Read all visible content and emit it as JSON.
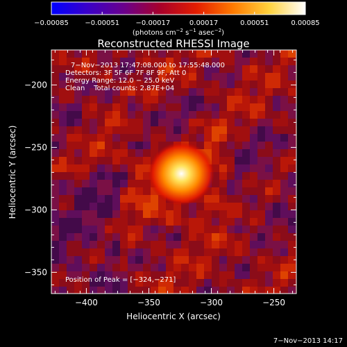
{
  "chart_data": {
    "type": "heatmap",
    "title": "Reconstructed RHESSI Image",
    "xlabel": "Heliocentric X (arcsec)",
    "ylabel": "Heliocentric Y (arcsec)",
    "xlim": [
      -428,
      -232
    ],
    "ylim": [
      -367,
      -172
    ],
    "xticks": [
      -400,
      -350,
      -300,
      -250
    ],
    "yticks": [
      -350,
      -300,
      -250,
      -200
    ],
    "xticklabels": [
      "−400",
      "−350",
      "−300",
      "−250"
    ],
    "yticklabels": [
      "−350",
      "−300",
      "−250",
      "−200"
    ],
    "colorbar": {
      "range": [
        -0.00085,
        0.00085
      ],
      "ticks": [
        -0.00085,
        -0.00051,
        -0.00017,
        0.00017,
        0.00051,
        0.00085
      ],
      "ticklabels": [
        "−0.00085",
        "−0.00051",
        "−0.00017",
        "0.00017",
        "0.00051",
        "0.00085"
      ],
      "unit_parts": {
        "prefix": "(photons cm",
        "sup1": "−2",
        "mid1": " s",
        "sup2": "−1",
        "mid2": " asec",
        "sup3": "−2",
        "suffix": ")"
      },
      "colors": [
        "#0000ff",
        "#3a00c8",
        "#6a008c",
        "#a8002a",
        "#e31d00",
        "#ff7a00",
        "#ffd23d",
        "#ffffff"
      ]
    },
    "peak": {
      "x": -324,
      "y": -271
    },
    "annotations": [
      "7−Nov−2013 17:47:08.000 to 17:55:48.000",
      "Detectors: 3F 5F 6F 7F 8F 9F, Att 0",
      "Energy Range: 12.0 − 25.0 keV",
      "Clean    Total counts: 2.87E+04"
    ],
    "peak_label": "Position of Peak = [−324,−271]"
  },
  "footer": {
    "timestamp": "7−Nov−2013 14:17"
  }
}
